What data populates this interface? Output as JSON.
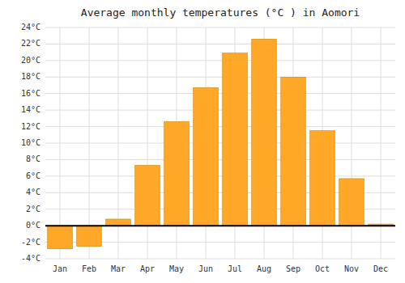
{
  "chart_data": {
    "type": "bar",
    "title": "Average monthly temperatures (°C ) in Aomori",
    "categories": [
      "Jan",
      "Feb",
      "Mar",
      "Apr",
      "May",
      "Jun",
      "Jul",
      "Aug",
      "Sep",
      "Oct",
      "Nov",
      "Dec"
    ],
    "values": [
      -2.8,
      -2.5,
      0.8,
      7.3,
      12.6,
      16.7,
      20.9,
      22.6,
      18.0,
      11.5,
      5.7,
      0.2
    ],
    "color": "#FFA726",
    "ylim": [
      -4,
      24
    ],
    "yticks": [
      {
        "value": -4,
        "label": "-4°C"
      },
      {
        "value": -2,
        "label": "-2°C"
      },
      {
        "value": 0,
        "label": "0°C"
      },
      {
        "value": 2,
        "label": "2°C"
      },
      {
        "value": 4,
        "label": "4°C"
      },
      {
        "value": 6,
        "label": "6°C"
      },
      {
        "value": 8,
        "label": "8°C"
      },
      {
        "value": 10,
        "label": "10°C"
      },
      {
        "value": 12,
        "label": "12°C"
      },
      {
        "value": 14,
        "label": "14°C"
      },
      {
        "value": 16,
        "label": "16°C"
      },
      {
        "value": 18,
        "label": "18°C"
      },
      {
        "value": 20,
        "label": "20°C"
      },
      {
        "value": 22,
        "label": "22°C"
      },
      {
        "value": 24,
        "label": "24°C"
      }
    ],
    "grid": true
  }
}
